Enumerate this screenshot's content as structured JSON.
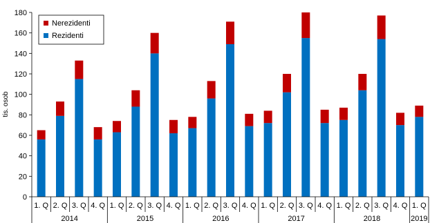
{
  "chart_data": {
    "type": "bar",
    "stacked": true,
    "ylabel": "tis. osob",
    "ylim": [
      0,
      180
    ],
    "yticks": [
      0,
      20,
      40,
      60,
      80,
      100,
      120,
      140,
      160,
      180
    ],
    "categories": [
      "1. Q",
      "2. Q",
      "3. Q",
      "4. Q",
      "1. Q",
      "2. Q",
      "3. Q",
      "4. Q",
      "1. Q",
      "2. Q",
      "3. Q",
      "4. Q",
      "1. Q",
      "2. Q",
      "3. Q",
      "4. Q",
      "1. Q",
      "2. Q",
      "3. Q",
      "4. Q",
      "1. Q"
    ],
    "years": [
      {
        "label": "2014",
        "start": 0,
        "count": 4
      },
      {
        "label": "2015",
        "start": 4,
        "count": 4
      },
      {
        "label": "2016",
        "start": 8,
        "count": 4
      },
      {
        "label": "2017",
        "start": 12,
        "count": 4
      },
      {
        "label": "2018",
        "start": 16,
        "count": 4
      },
      {
        "label": "2019",
        "start": 20,
        "count": 1
      }
    ],
    "series": [
      {
        "name": "Rezidenti",
        "color": "#0070c0",
        "values": [
          56,
          79,
          115,
          56,
          63,
          88,
          140,
          62,
          67,
          96,
          149,
          69,
          72,
          102,
          155,
          72,
          75,
          104,
          154,
          70,
          78
        ]
      },
      {
        "name": "Nerezidenti",
        "color": "#c00000",
        "values": [
          9,
          14,
          18,
          12,
          11,
          16,
          20,
          13,
          11,
          17,
          22,
          12,
          12,
          18,
          25,
          13,
          12,
          16,
          23,
          12,
          11
        ]
      }
    ],
    "legend_position": "top-left",
    "grid": false
  }
}
